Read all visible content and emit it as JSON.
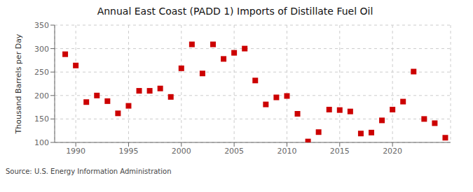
{
  "chart_data": {
    "type": "scatter",
    "title": "Annual East Coast (PADD 1) Imports of Distillate Fuel Oil",
    "y_label": "Thousand Barrels per Day",
    "annotations": [
      "Source: U.S. Energy Information Administration"
    ],
    "color": "#cc0000",
    "marker": "square",
    "grid": true,
    "xlim": [
      1988.0,
      2025.5
    ],
    "xticks": [
      1990,
      1995,
      2000,
      2005,
      2010,
      2015,
      2020
    ],
    "ylim": [
      100,
      350
    ],
    "yticks": [
      100,
      150,
      200,
      250,
      300,
      350
    ],
    "x": [
      1989,
      1990,
      1991,
      1992,
      1993,
      1994,
      1995,
      1996,
      1997,
      1998,
      1999,
      2000,
      2001,
      2002,
      2003,
      2004,
      2005,
      2006,
      2007,
      2008,
      2009,
      2010,
      2011,
      2012,
      2013,
      2014,
      2015,
      2016,
      2017,
      2018,
      2019,
      2020,
      2021,
      2022,
      2023,
      2024,
      2025
    ],
    "values": [
      288,
      264,
      186,
      200,
      188,
      162,
      178,
      210,
      210,
      215,
      197,
      258,
      309,
      247,
      309,
      278,
      291,
      300,
      232,
      181,
      196,
      199,
      161,
      102,
      122,
      170,
      169,
      166,
      119,
      121,
      147,
      170,
      187,
      251,
      150,
      141,
      110
    ]
  }
}
